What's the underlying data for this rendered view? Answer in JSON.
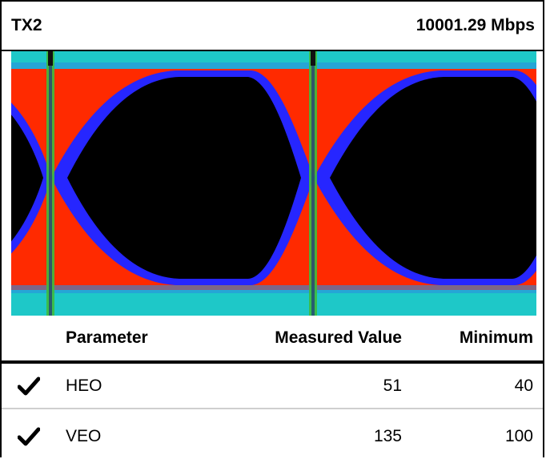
{
  "header": {
    "channel": "TX2",
    "rate": "10001.29 Mbps"
  },
  "eye_diagram": {
    "colors": {
      "background": "#1ec8c8",
      "band": "#ff2a00",
      "edge": "#2626ff",
      "center": "#000000",
      "crossing_line": "#3dbd3d"
    }
  },
  "table": {
    "headers": {
      "parameter": "Parameter",
      "measured": "Measured Value",
      "minimum": "Minimum"
    },
    "rows": [
      {
        "status": "pass",
        "parameter": "HEO",
        "measured": "51",
        "minimum": "40"
      },
      {
        "status": "pass",
        "parameter": "VEO",
        "measured": "135",
        "minimum": "100"
      }
    ]
  }
}
